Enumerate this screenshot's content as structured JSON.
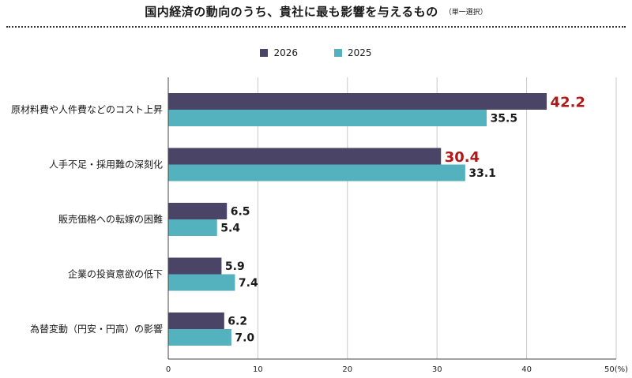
{
  "chart_data": {
    "type": "bar",
    "orientation": "horizontal",
    "title": "国内経済の動向のうち、貴社に最も影響を与えるもの",
    "subtitle": "（単一選択）",
    "categories": [
      "原材料費や人件費などのコスト上昇",
      "人手不足・採用難の深刻化",
      "販売価格への転嫁の困難",
      "企業の投資意欲の低下",
      "為替変動（円安・円高）の影響"
    ],
    "series": [
      {
        "name": "2026",
        "color": "#4a4566",
        "values": [
          42.2,
          30.4,
          6.5,
          5.9,
          6.2
        ],
        "label_color": "#1a1a1a",
        "highlight_color": "#b01818",
        "highlight_indices": [
          0,
          1
        ]
      },
      {
        "name": "2025",
        "color": "#54b1be",
        "values": [
          35.5,
          33.1,
          5.4,
          7.4,
          7.0
        ],
        "label_color": "#1a1a1a"
      }
    ],
    "xlim": [
      0,
      50
    ],
    "xticks": [
      "0",
      "10",
      "20",
      "30",
      "40",
      "50(%)"
    ],
    "grid": true,
    "legend_position": "top-center"
  }
}
